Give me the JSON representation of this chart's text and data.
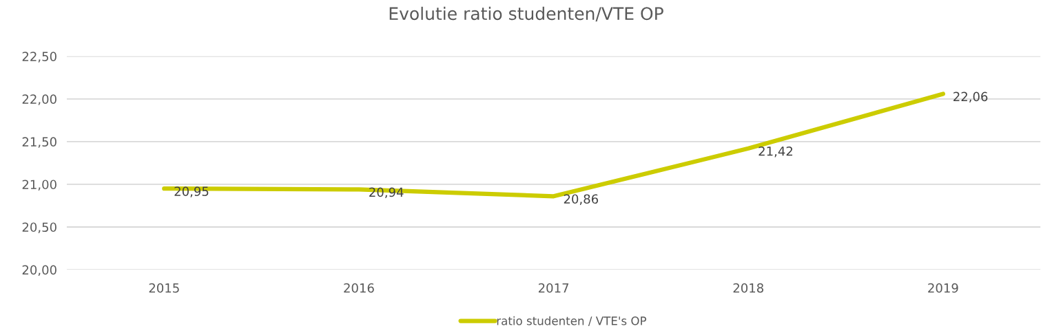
{
  "chart_data": {
    "type": "line",
    "title": "Evolutie ratio studenten/VTE OP",
    "categories": [
      "2015",
      "2016",
      "2017",
      "2018",
      "2019"
    ],
    "series": [
      {
        "name": "ratio studenten / VTE's OP",
        "color": "#cccc00",
        "values": [
          20.95,
          20.94,
          20.86,
          21.42,
          22.06
        ],
        "value_labels": [
          "20,95",
          "20,94",
          "20,86",
          "21,42",
          "22,06"
        ]
      }
    ],
    "ylim": [
      20.0,
      22.5
    ],
    "yticks": [
      {
        "value": 20.0,
        "label": "20,00"
      },
      {
        "value": 20.5,
        "label": "20,50"
      },
      {
        "value": 21.0,
        "label": "21,00"
      },
      {
        "value": 21.5,
        "label": "21,50"
      },
      {
        "value": 22.0,
        "label": "22,00"
      },
      {
        "value": 22.5,
        "label": "22,50"
      }
    ],
    "grid": "y",
    "legend": "bottom",
    "marker": "none",
    "line_style": "solid"
  }
}
